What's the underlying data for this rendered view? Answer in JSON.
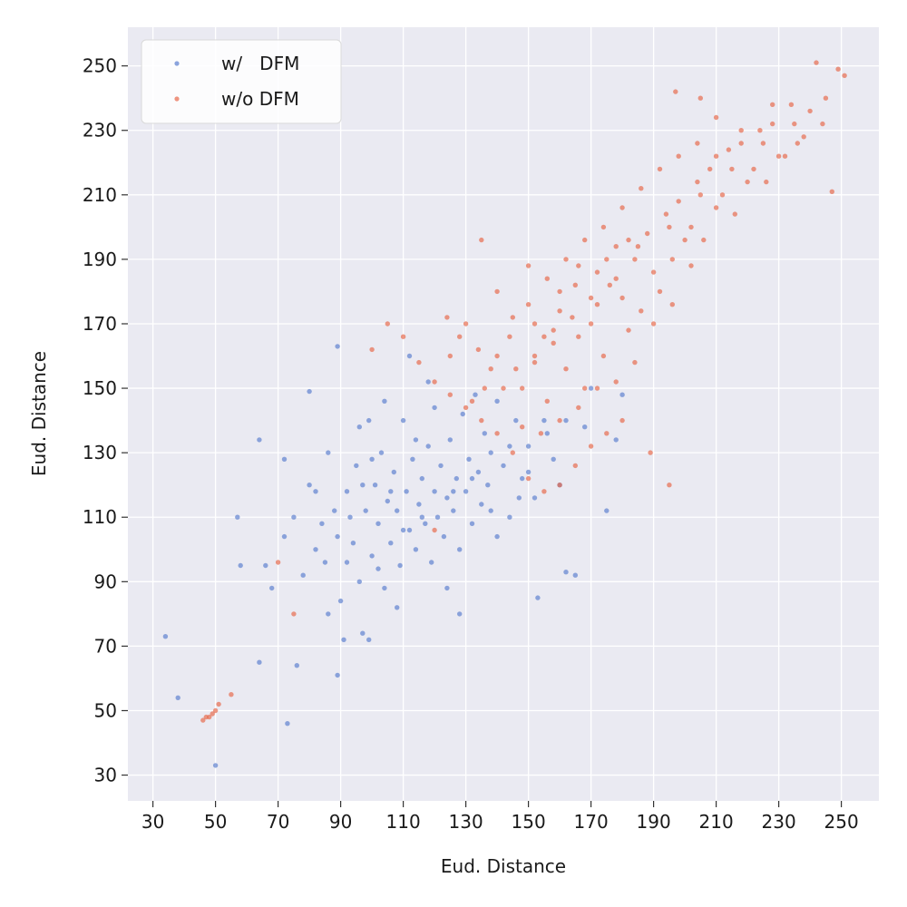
{
  "chart_data": {
    "type": "scatter",
    "title": "",
    "xlabel": "Eud. Distance",
    "ylabel": "Eud. Distance",
    "xlim": [
      22,
      262
    ],
    "ylim": [
      22,
      262
    ],
    "xticks": [
      30,
      50,
      70,
      90,
      110,
      130,
      150,
      170,
      190,
      210,
      230,
      250
    ],
    "yticks": [
      30,
      50,
      70,
      90,
      110,
      130,
      150,
      170,
      190,
      210,
      230,
      250
    ],
    "grid": true,
    "background": "#eaeaf2",
    "legend_position": "top-left",
    "series": [
      {
        "name": "w/   DFM",
        "color": "#5b7fcf",
        "points": [
          [
            34,
            73
          ],
          [
            38,
            54
          ],
          [
            50,
            33
          ],
          [
            57,
            110
          ],
          [
            58,
            95
          ],
          [
            64,
            134
          ],
          [
            64,
            65
          ],
          [
            72,
            128
          ],
          [
            73,
            46
          ],
          [
            76,
            64
          ],
          [
            80,
            149
          ],
          [
            89,
            163
          ],
          [
            89,
            61
          ],
          [
            91,
            72
          ],
          [
            97,
            74
          ],
          [
            99,
            72
          ],
          [
            66,
            95
          ],
          [
            68,
            88
          ],
          [
            72,
            104
          ],
          [
            75,
            110
          ],
          [
            78,
            92
          ],
          [
            80,
            120
          ],
          [
            82,
            100
          ],
          [
            84,
            108
          ],
          [
            85,
            96
          ],
          [
            86,
            130
          ],
          [
            88,
            112
          ],
          [
            90,
            84
          ],
          [
            92,
            118
          ],
          [
            94,
            102
          ],
          [
            95,
            126
          ],
          [
            96,
            90
          ],
          [
            98,
            112
          ],
          [
            99,
            140
          ],
          [
            100,
            98
          ],
          [
            101,
            120
          ],
          [
            102,
            108
          ],
          [
            103,
            130
          ],
          [
            104,
            88
          ],
          [
            105,
            115
          ],
          [
            106,
            102
          ],
          [
            107,
            124
          ],
          [
            108,
            112
          ],
          [
            109,
            95
          ],
          [
            110,
            140
          ],
          [
            111,
            118
          ],
          [
            112,
            106
          ],
          [
            113,
            128
          ],
          [
            114,
            100
          ],
          [
            115,
            114
          ],
          [
            116,
            122
          ],
          [
            117,
            108
          ],
          [
            118,
            132
          ],
          [
            119,
            96
          ],
          [
            120,
            118
          ],
          [
            121,
            110
          ],
          [
            122,
            126
          ],
          [
            123,
            104
          ],
          [
            124,
            116
          ],
          [
            125,
            134
          ],
          [
            126,
            112
          ],
          [
            127,
            122
          ],
          [
            128,
            100
          ],
          [
            129,
            142
          ],
          [
            130,
            118
          ],
          [
            131,
            128
          ],
          [
            132,
            108
          ],
          [
            133,
            148
          ],
          [
            134,
            124
          ],
          [
            135,
            114
          ],
          [
            136,
            136
          ],
          [
            137,
            120
          ],
          [
            138,
            130
          ],
          [
            140,
            146
          ],
          [
            142,
            126
          ],
          [
            144,
            110
          ],
          [
            146,
            140
          ],
          [
            148,
            122
          ],
          [
            150,
            132
          ],
          [
            153,
            85
          ],
          [
            160,
            120
          ],
          [
            162,
            93
          ],
          [
            165,
            92
          ],
          [
            170,
            150
          ],
          [
            175,
            112
          ],
          [
            178,
            134
          ],
          [
            180,
            148
          ],
          [
            158,
            128
          ],
          [
            155,
            140
          ],
          [
            152,
            116
          ],
          [
            112,
            160
          ],
          [
            118,
            152
          ],
          [
            96,
            138
          ],
          [
            92,
            96
          ],
          [
            86,
            80
          ],
          [
            82,
            118
          ],
          [
            104,
            146
          ],
          [
            108,
            82
          ],
          [
            124,
            88
          ],
          [
            128,
            80
          ],
          [
            140,
            104
          ],
          [
            147,
            116
          ],
          [
            120,
            144
          ],
          [
            114,
            134
          ],
          [
            110,
            106
          ],
          [
            102,
            94
          ],
          [
            97,
            120
          ],
          [
            93,
            110
          ],
          [
            89,
            104
          ],
          [
            100,
            128
          ],
          [
            106,
            118
          ],
          [
            116,
            110
          ],
          [
            126,
            118
          ],
          [
            132,
            122
          ],
          [
            138,
            112
          ],
          [
            144,
            132
          ],
          [
            150,
            124
          ],
          [
            156,
            136
          ],
          [
            162,
            140
          ],
          [
            168,
            138
          ]
        ]
      },
      {
        "name": "w/o DFM",
        "color": "#e8684a",
        "points": [
          [
            46,
            47
          ],
          [
            47,
            48
          ],
          [
            48,
            48
          ],
          [
            49,
            49
          ],
          [
            50,
            50
          ],
          [
            51,
            52
          ],
          [
            55,
            55
          ],
          [
            70,
            96
          ],
          [
            75,
            80
          ],
          [
            120,
            106
          ],
          [
            125,
            160
          ],
          [
            130,
            170
          ],
          [
            135,
            196
          ],
          [
            140,
            180
          ],
          [
            145,
            172
          ],
          [
            150,
            188
          ],
          [
            155,
            166
          ],
          [
            160,
            174
          ],
          [
            165,
            182
          ],
          [
            170,
            170
          ],
          [
            175,
            190
          ],
          [
            180,
            178
          ],
          [
            185,
            194
          ],
          [
            190,
            186
          ],
          [
            195,
            200
          ],
          [
            200,
            196
          ],
          [
            205,
            210
          ],
          [
            210,
            206
          ],
          [
            215,
            218
          ],
          [
            220,
            214
          ],
          [
            225,
            226
          ],
          [
            230,
            222
          ],
          [
            235,
            232
          ],
          [
            240,
            236
          ],
          [
            245,
            240
          ],
          [
            249,
            249
          ],
          [
            251,
            247
          ],
          [
            242,
            251
          ],
          [
            247,
            211
          ],
          [
            197,
            242
          ],
          [
            205,
            240
          ],
          [
            210,
            234
          ],
          [
            218,
            230
          ],
          [
            228,
            238
          ],
          [
            236,
            226
          ],
          [
            244,
            232
          ],
          [
            189,
            130
          ],
          [
            195,
            120
          ],
          [
            180,
            140
          ],
          [
            175,
            136
          ],
          [
            170,
            132
          ],
          [
            165,
            126
          ],
          [
            160,
            120
          ],
          [
            155,
            118
          ],
          [
            150,
            122
          ],
          [
            145,
            130
          ],
          [
            140,
            136
          ],
          [
            135,
            140
          ],
          [
            130,
            144
          ],
          [
            125,
            148
          ],
          [
            120,
            152
          ],
          [
            115,
            158
          ],
          [
            110,
            166
          ],
          [
            105,
            170
          ],
          [
            100,
            162
          ],
          [
            148,
            150
          ],
          [
            152,
            158
          ],
          [
            156,
            146
          ],
          [
            158,
            164
          ],
          [
            162,
            156
          ],
          [
            166,
            166
          ],
          [
            168,
            150
          ],
          [
            172,
            176
          ],
          [
            174,
            160
          ],
          [
            178,
            184
          ],
          [
            182,
            168
          ],
          [
            184,
            190
          ],
          [
            186,
            174
          ],
          [
            188,
            198
          ],
          [
            192,
            180
          ],
          [
            194,
            204
          ],
          [
            196,
            190
          ],
          [
            198,
            208
          ],
          [
            202,
            200
          ],
          [
            204,
            214
          ],
          [
            206,
            196
          ],
          [
            208,
            218
          ],
          [
            212,
            210
          ],
          [
            214,
            224
          ],
          [
            216,
            204
          ],
          [
            218,
            226
          ],
          [
            222,
            218
          ],
          [
            224,
            230
          ],
          [
            226,
            214
          ],
          [
            228,
            232
          ],
          [
            232,
            222
          ],
          [
            234,
            238
          ],
          [
            238,
            228
          ],
          [
            202,
            188
          ],
          [
            196,
            176
          ],
          [
            190,
            170
          ],
          [
            184,
            158
          ],
          [
            178,
            152
          ],
          [
            172,
            150
          ],
          [
            166,
            144
          ],
          [
            160,
            140
          ],
          [
            154,
            136
          ],
          [
            148,
            138
          ],
          [
            142,
            150
          ],
          [
            138,
            156
          ],
          [
            134,
            162
          ],
          [
            128,
            166
          ],
          [
            124,
            172
          ],
          [
            150,
            176
          ],
          [
            156,
            184
          ],
          [
            162,
            190
          ],
          [
            168,
            196
          ],
          [
            174,
            200
          ],
          [
            180,
            206
          ],
          [
            186,
            212
          ],
          [
            192,
            218
          ],
          [
            198,
            222
          ],
          [
            204,
            226
          ],
          [
            210,
            222
          ],
          [
            182,
            196
          ],
          [
            176,
            182
          ],
          [
            170,
            178
          ],
          [
            164,
            172
          ],
          [
            158,
            168
          ],
          [
            152,
            160
          ],
          [
            146,
            156
          ],
          [
            140,
            160
          ],
          [
            136,
            150
          ],
          [
            132,
            146
          ],
          [
            144,
            166
          ],
          [
            152,
            170
          ],
          [
            160,
            180
          ],
          [
            166,
            188
          ],
          [
            172,
            186
          ],
          [
            178,
            194
          ]
        ]
      }
    ]
  }
}
